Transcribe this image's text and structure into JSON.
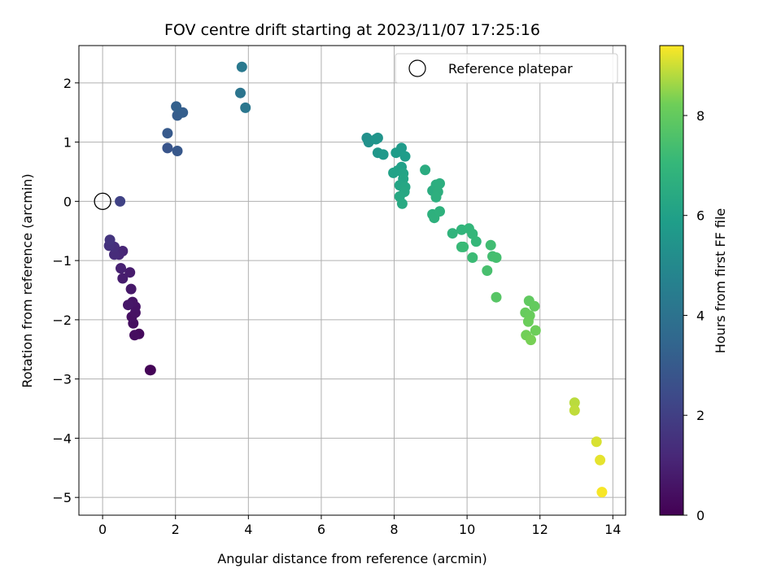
{
  "chart_data": {
    "type": "scatter",
    "title": "FOV centre drift starting at 2023/11/07 17:25:16",
    "xlabel": "Angular distance from reference (arcmin)",
    "ylabel": "Rotation from reference (arcmin)",
    "colorbar_label": "Hours from first FF file",
    "xlim": [
      -0.65,
      14.35
    ],
    "ylim": [
      -5.3,
      2.63
    ],
    "clim": [
      0,
      9.4
    ],
    "colormap": "viridis",
    "grid": true,
    "legend_placement": "upper-right",
    "x_ticks": [
      0,
      2,
      4,
      6,
      8,
      10,
      12,
      14
    ],
    "x_tick_labels": [
      "0",
      "2",
      "4",
      "6",
      "8",
      "10",
      "12",
      "14"
    ],
    "y_ticks": [
      -5,
      -4,
      -3,
      -2,
      -1,
      0,
      1,
      2
    ],
    "y_tick_labels": [
      "−5",
      "−4",
      "−3",
      "−2",
      "−1",
      "0",
      "1",
      "2"
    ],
    "colorbar_ticks": [
      0,
      2,
      4,
      6,
      8
    ],
    "colorbar_tick_labels": [
      "0",
      "2",
      "4",
      "6",
      "8"
    ],
    "reference": {
      "label": "Reference platepar",
      "x": 0,
      "y": 0
    },
    "points": [
      {
        "x": 1.3,
        "y": -2.85,
        "t": 0.05
      },
      {
        "x": 1.32,
        "y": -2.85,
        "t": 0.1
      },
      {
        "x": 1.0,
        "y": -2.24,
        "t": 0.25
      },
      {
        "x": 0.88,
        "y": -2.26,
        "t": 0.35
      },
      {
        "x": 0.84,
        "y": -2.06,
        "t": 0.4
      },
      {
        "x": 0.8,
        "y": -1.95,
        "t": 0.45
      },
      {
        "x": 0.9,
        "y": -1.88,
        "t": 0.5
      },
      {
        "x": 0.9,
        "y": -1.78,
        "t": 0.55
      },
      {
        "x": 0.82,
        "y": -1.7,
        "t": 0.6
      },
      {
        "x": 0.7,
        "y": -1.75,
        "t": 0.65
      },
      {
        "x": 0.78,
        "y": -1.48,
        "t": 0.7
      },
      {
        "x": 0.75,
        "y": -1.2,
        "t": 0.8
      },
      {
        "x": 0.55,
        "y": -1.3,
        "t": 0.85
      },
      {
        "x": 0.5,
        "y": -1.13,
        "t": 0.95
      },
      {
        "x": 0.55,
        "y": -0.84,
        "t": 1.1
      },
      {
        "x": 0.45,
        "y": -0.9,
        "t": 1.2
      },
      {
        "x": 0.32,
        "y": -0.9,
        "t": 1.3
      },
      {
        "x": 0.32,
        "y": -0.77,
        "t": 1.4
      },
      {
        "x": 0.18,
        "y": -0.75,
        "t": 1.5
      },
      {
        "x": 0.2,
        "y": -0.65,
        "t": 1.6
      },
      {
        "x": 0.48,
        "y": 0.0,
        "t": 2.1
      },
      {
        "x": 1.78,
        "y": 0.9,
        "t": 2.8
      },
      {
        "x": 2.05,
        "y": 0.85,
        "t": 2.9
      },
      {
        "x": 1.78,
        "y": 1.15,
        "t": 3.0
      },
      {
        "x": 2.05,
        "y": 1.45,
        "t": 3.1
      },
      {
        "x": 2.2,
        "y": 1.5,
        "t": 3.2
      },
      {
        "x": 2.02,
        "y": 1.6,
        "t": 3.25
      },
      {
        "x": 3.78,
        "y": 1.83,
        "t": 4.1
      },
      {
        "x": 3.92,
        "y": 1.58,
        "t": 4.2
      },
      {
        "x": 3.82,
        "y": 2.27,
        "t": 4.3
      },
      {
        "x": 7.25,
        "y": 1.07,
        "t": 5.3
      },
      {
        "x": 7.3,
        "y": 1.0,
        "t": 5.35
      },
      {
        "x": 7.55,
        "y": 1.07,
        "t": 5.45
      },
      {
        "x": 7.5,
        "y": 1.05,
        "t": 5.5
      },
      {
        "x": 7.55,
        "y": 0.82,
        "t": 5.6
      },
      {
        "x": 7.7,
        "y": 0.79,
        "t": 5.65
      },
      {
        "x": 8.2,
        "y": 0.9,
        "t": 5.75
      },
      {
        "x": 8.05,
        "y": 0.82,
        "t": 5.8
      },
      {
        "x": 8.3,
        "y": 0.76,
        "t": 5.85
      },
      {
        "x": 8.2,
        "y": 0.58,
        "t": 5.95
      },
      {
        "x": 8.1,
        "y": 0.52,
        "t": 6.0
      },
      {
        "x": 7.98,
        "y": 0.48,
        "t": 6.05
      },
      {
        "x": 8.25,
        "y": 0.47,
        "t": 6.1
      },
      {
        "x": 8.25,
        "y": 0.38,
        "t": 6.15
      },
      {
        "x": 8.15,
        "y": 0.27,
        "t": 6.2
      },
      {
        "x": 8.3,
        "y": 0.24,
        "t": 6.25
      },
      {
        "x": 8.28,
        "y": 0.16,
        "t": 6.3
      },
      {
        "x": 8.15,
        "y": 0.08,
        "t": 6.35
      },
      {
        "x": 8.22,
        "y": -0.04,
        "t": 6.4
      },
      {
        "x": 8.85,
        "y": 0.53,
        "t": 6.5
      },
      {
        "x": 9.05,
        "y": 0.18,
        "t": 6.55
      },
      {
        "x": 9.15,
        "y": 0.28,
        "t": 6.6
      },
      {
        "x": 9.25,
        "y": 0.3,
        "t": 6.62
      },
      {
        "x": 9.2,
        "y": 0.16,
        "t": 6.65
      },
      {
        "x": 9.15,
        "y": 0.07,
        "t": 6.68
      },
      {
        "x": 9.05,
        "y": -0.22,
        "t": 6.7
      },
      {
        "x": 9.1,
        "y": -0.28,
        "t": 6.72
      },
      {
        "x": 9.25,
        "y": -0.17,
        "t": 6.75
      },
      {
        "x": 9.6,
        "y": -0.54,
        "t": 6.85
      },
      {
        "x": 9.85,
        "y": -0.48,
        "t": 6.9
      },
      {
        "x": 10.05,
        "y": -0.46,
        "t": 6.95
      },
      {
        "x": 10.15,
        "y": -0.55,
        "t": 7.0
      },
      {
        "x": 10.25,
        "y": -0.68,
        "t": 7.05
      },
      {
        "x": 9.85,
        "y": -0.77,
        "t": 7.1
      },
      {
        "x": 9.9,
        "y": -0.77,
        "t": 7.15
      },
      {
        "x": 10.15,
        "y": -0.95,
        "t": 7.2
      },
      {
        "x": 10.65,
        "y": -0.74,
        "t": 7.3
      },
      {
        "x": 10.7,
        "y": -0.93,
        "t": 7.35
      },
      {
        "x": 10.8,
        "y": -0.95,
        "t": 7.4
      },
      {
        "x": 10.55,
        "y": -1.17,
        "t": 7.45
      },
      {
        "x": 10.8,
        "y": -1.62,
        "t": 7.75
      },
      {
        "x": 11.7,
        "y": -1.68,
        "t": 7.95
      },
      {
        "x": 11.85,
        "y": -1.77,
        "t": 8.0
      },
      {
        "x": 11.6,
        "y": -1.88,
        "t": 8.05
      },
      {
        "x": 11.72,
        "y": -1.93,
        "t": 8.1
      },
      {
        "x": 11.68,
        "y": -2.03,
        "t": 8.15
      },
      {
        "x": 11.88,
        "y": -2.18,
        "t": 8.2
      },
      {
        "x": 11.62,
        "y": -2.26,
        "t": 8.25
      },
      {
        "x": 11.75,
        "y": -2.34,
        "t": 8.3
      },
      {
        "x": 12.95,
        "y": -3.4,
        "t": 8.85
      },
      {
        "x": 12.95,
        "y": -3.53,
        "t": 8.9
      },
      {
        "x": 13.55,
        "y": -4.06,
        "t": 9.1
      },
      {
        "x": 13.65,
        "y": -4.37,
        "t": 9.2
      },
      {
        "x": 13.7,
        "y": -4.91,
        "t": 9.35
      }
    ]
  }
}
